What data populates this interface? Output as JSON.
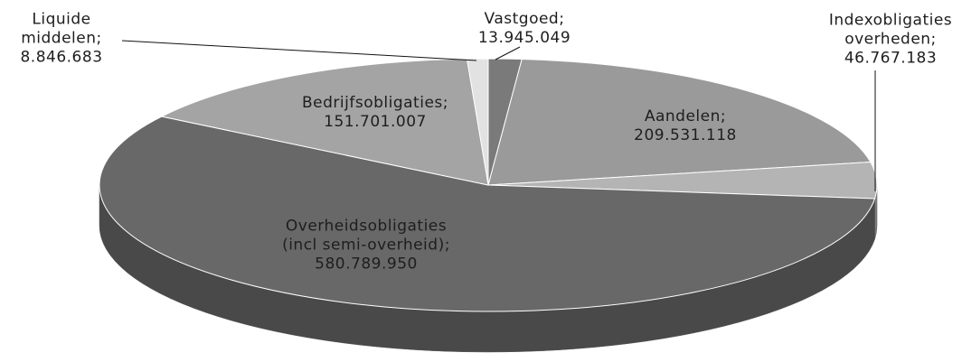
{
  "chart_data": {
    "type": "pie",
    "categories": [
      "Liquide middelen;",
      "Vastgoed;",
      "Aandelen;",
      "Indexobligaties overheden;",
      "Overheidsobligaties (incl semi-overheid);",
      "Bedrijfsobligaties;"
    ],
    "values": [
      8846683,
      13945049,
      209531118,
      46767183,
      580789950,
      151701007
    ],
    "value_labels": [
      "8.846.683",
      "13.945.049",
      "209.531.118",
      "46.767.183",
      "580.789.950",
      "151.701.007"
    ],
    "colors": [
      "#e2e2e2",
      "#7a7a7a",
      "#9a9a9a",
      "#b4b4b4",
      "#686868",
      "#a4a4a4"
    ]
  }
}
